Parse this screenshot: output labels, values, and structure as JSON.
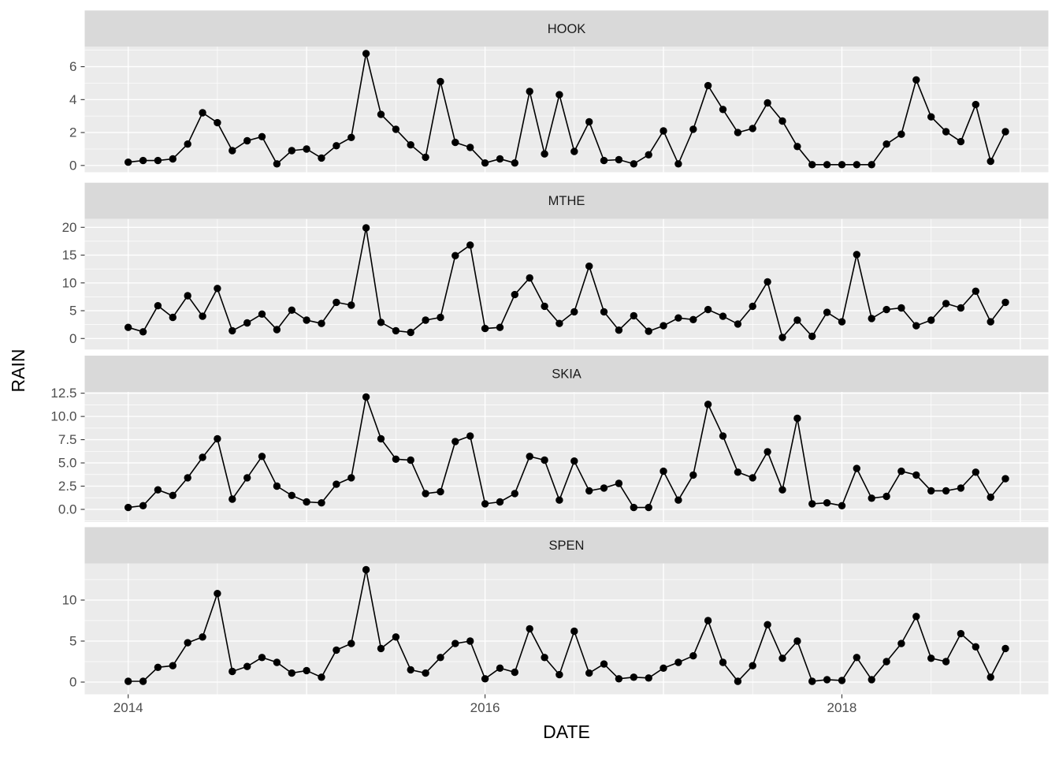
{
  "figure": {
    "background": "#FFFFFF",
    "panel_bg": "#EBEBEB",
    "strip_bg": "#D9D9D9",
    "grid_color": "#FFFFFF",
    "series_color": "#000000",
    "axis_text_color": "#4D4D4D",
    "strip_text_color": "#1A1A1A",
    "axis_title_color": "#000000"
  },
  "chart_data": {
    "type": "line",
    "title": "",
    "xlabel": "DATE",
    "ylabel": "RAIN",
    "x_unit": "month",
    "x_start": "2014-01",
    "x_end": "2018-12",
    "n_points_per_facet": 60,
    "x_ticks": [
      {
        "label": "2014",
        "month_index": 0
      },
      {
        "label": "2016",
        "month_index": 24
      },
      {
        "label": "2018",
        "month_index": 48
      }
    ],
    "x_major_grid_years_months": [
      0,
      12,
      24,
      36,
      48,
      60
    ],
    "x_minor_grid_months": [
      6,
      18,
      30,
      42,
      54
    ],
    "legend": "none",
    "grid": "on",
    "facets": [
      {
        "name": "HOOK",
        "y_tick_values": [
          0,
          2,
          4,
          6
        ],
        "y_tick_labels": [
          "0",
          "2",
          "4",
          "6"
        ],
        "ylim": [
          -0.41,
          7.21
        ],
        "values": [
          0.2,
          0.3,
          0.3,
          0.4,
          1.3,
          3.2,
          2.6,
          0.9,
          1.5,
          1.75,
          0.1,
          0.9,
          1.0,
          0.45,
          1.2,
          1.7,
          6.8,
          3.1,
          2.2,
          1.25,
          0.5,
          5.1,
          1.4,
          1.1,
          0.15,
          0.4,
          0.15,
          4.5,
          0.7,
          4.3,
          0.85,
          2.65,
          0.3,
          0.35,
          0.1,
          0.65,
          2.1,
          0.1,
          2.2,
          4.85,
          3.4,
          2.0,
          2.25,
          3.8,
          2.7,
          1.15,
          0.05,
          0.05,
          0.05,
          0.05,
          0.05,
          1.3,
          1.9,
          5.2,
          2.95,
          2.05,
          1.45,
          3.7,
          0.25,
          2.05
        ]
      },
      {
        "name": "MTHE",
        "y_tick_values": [
          0,
          5,
          10,
          15,
          20
        ],
        "y_tick_labels": [
          "0",
          "5",
          "10",
          "15",
          "20"
        ],
        "ylim": [
          -1.99,
          21.5
        ],
        "values": [
          2.0,
          1.2,
          5.9,
          3.8,
          7.7,
          4.0,
          9.0,
          1.4,
          2.8,
          4.4,
          1.6,
          5.1,
          3.3,
          2.7,
          6.5,
          6.0,
          19.9,
          2.9,
          1.4,
          1.1,
          3.3,
          3.8,
          14.9,
          16.8,
          1.8,
          2.0,
          7.9,
          10.9,
          5.8,
          2.7,
          4.8,
          13.0,
          4.8,
          1.5,
          4.1,
          1.3,
          2.3,
          3.7,
          3.4,
          5.2,
          4.0,
          2.6,
          5.8,
          10.2,
          0.2,
          3.3,
          0.4,
          4.7,
          3.0,
          15.1,
          3.6,
          5.2,
          5.5,
          2.3,
          3.3,
          6.3,
          5.5,
          8.5,
          3.0,
          6.5
        ]
      },
      {
        "name": "SKIA",
        "y_tick_values": [
          0,
          2.5,
          5,
          7.5,
          10,
          12.5
        ],
        "y_tick_labels": [
          "0.0",
          "2.5",
          "5.0",
          "7.5",
          "10.0",
          "12.5"
        ],
        "ylim": [
          -1.36,
          12.64
        ],
        "values": [
          0.2,
          0.4,
          2.1,
          1.5,
          3.4,
          5.6,
          7.6,
          1.1,
          3.4,
          5.7,
          2.5,
          1.5,
          0.8,
          0.7,
          2.7,
          3.4,
          12.1,
          7.6,
          5.4,
          5.3,
          1.7,
          1.9,
          7.3,
          7.9,
          0.6,
          0.8,
          1.7,
          5.7,
          5.3,
          1.0,
          5.2,
          2.0,
          2.3,
          2.8,
          0.2,
          0.2,
          4.1,
          1.0,
          3.7,
          11.3,
          7.9,
          4.0,
          3.4,
          6.2,
          2.1,
          9.8,
          0.6,
          0.7,
          0.4,
          4.4,
          1.2,
          1.4,
          4.1,
          3.7,
          2.0,
          2.0,
          2.3,
          4.0,
          1.3,
          3.3
        ]
      },
      {
        "name": "SPEN",
        "y_tick_values": [
          0,
          5,
          10
        ],
        "y_tick_labels": [
          "0",
          "5",
          "10"
        ],
        "ylim": [
          -1.49,
          14.47
        ],
        "values": [
          0.1,
          0.1,
          1.8,
          2.0,
          4.8,
          5.5,
          10.8,
          1.3,
          1.9,
          3.0,
          2.4,
          1.1,
          1.4,
          0.6,
          3.9,
          4.7,
          13.7,
          4.1,
          5.5,
          1.5,
          1.1,
          3.0,
          4.7,
          5.0,
          0.4,
          1.7,
          1.2,
          6.5,
          3.0,
          0.9,
          6.2,
          1.1,
          2.2,
          0.4,
          0.6,
          0.5,
          1.7,
          2.4,
          3.2,
          7.5,
          2.4,
          0.1,
          2.0,
          7.0,
          2.9,
          5.0,
          0.1,
          0.3,
          0.2,
          3.0,
          0.3,
          2.5,
          4.7,
          8.0,
          2.9,
          2.5,
          5.9,
          4.3,
          0.6,
          4.1
        ]
      }
    ]
  }
}
